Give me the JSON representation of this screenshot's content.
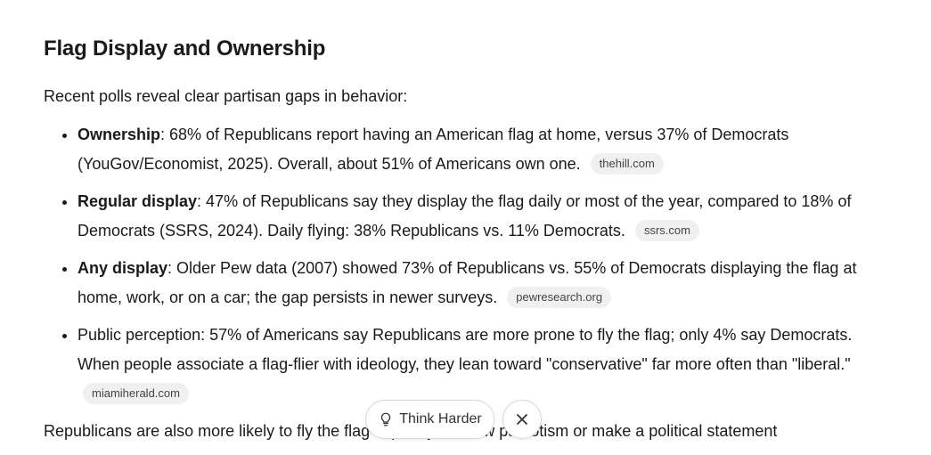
{
  "header": {
    "title": "Flag Display and Ownership"
  },
  "intro": "Recent polls reveal clear partisan gaps in behavior:",
  "items": [
    {
      "lead": "Ownership",
      "text": ": 68% of Republicans report having an American flag at home, versus 37% of Democrats (YouGov/Economist, 2025). Overall, about 51% of Americans own one.",
      "source": "thehill.com"
    },
    {
      "lead": "Regular display",
      "text": ": 47% of Republicans say they display the flag daily or most of the year, compared to 18% of Democrats (SSRS, 2024). Daily flying: 38% Republicans vs. 11% Democrats.",
      "source": "ssrs.com"
    },
    {
      "lead": "Any display",
      "text": ": Older Pew data (2007) showed 73% of Republicans vs. 55% of Democrats displaying the flag at home, work, or on a car; the gap persists in newer surveys.",
      "source": "pewresearch.org"
    },
    {
      "text": "Public perception: 57% of Americans say Republicans are more prone to fly the flag; only 4% say Democrats. When people associate a flag-flier with ideology, they lean toward \"conservative\" far more often than \"liberal.\"",
      "source": "miamiherald.com"
    }
  ],
  "footer": "Republicans are also more likely to fly the flag explicitly to show patriotism or make a political statement",
  "buttons": {
    "think_harder": "Think Harder"
  }
}
